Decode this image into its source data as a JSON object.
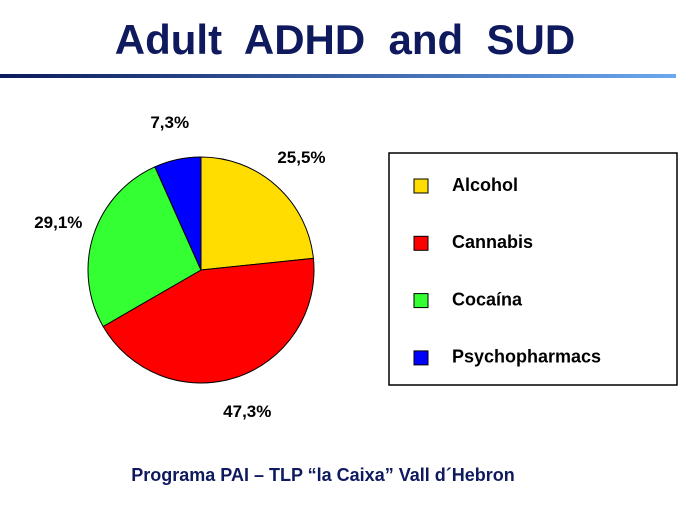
{
  "chart_data": {
    "type": "pie",
    "title": "Adult  ADHD  and  SUD",
    "categories": [
      "Alcohol",
      "Cannabis",
      "Cocaína",
      "Psychopharmacs"
    ],
    "values": [
      25.5,
      47.3,
      29.1,
      7.3
    ],
    "value_labels": [
      "25,5%",
      "47,3%",
      "29,1%",
      "7,3%"
    ],
    "colors": [
      "#ffdd00",
      "#ff0000",
      "#33ff33",
      "#0000ff"
    ],
    "legend": "right",
    "footnote": "Programa PAI – TLP “la Caixa” Vall d´Hebron"
  }
}
